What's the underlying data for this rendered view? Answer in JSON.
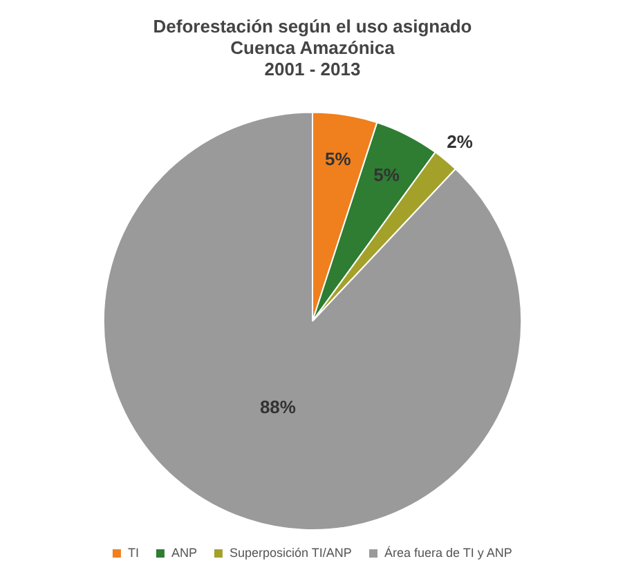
{
  "chart_data": {
    "type": "pie",
    "title": "Deforestación según el uso asignado\nCuenca Amazónica\n2001 - 2013",
    "categories": [
      "TI",
      "ANP",
      "Superposición TI/ANP",
      "Área fuera de TI y ANP"
    ],
    "values": [
      5,
      5,
      2,
      88
    ],
    "colors": [
      "#f07f1e",
      "#2e7d32",
      "#a3a12a",
      "#9a9a9a"
    ],
    "value_labels": [
      "5%",
      "5%",
      "2%",
      "88%"
    ],
    "legend": "bottom"
  }
}
